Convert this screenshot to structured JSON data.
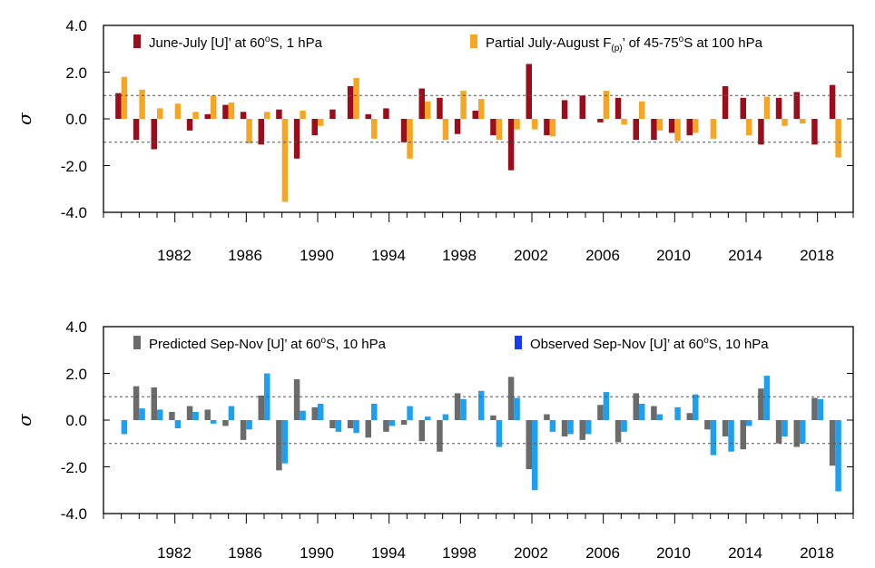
{
  "colors": {
    "top_series_1": "#9b0d1b",
    "top_series_2": "#f5a623",
    "bottom_series_1": "#6b6b6b",
    "bottom_series_2": "#1ea0f0",
    "bottom_legend_swatch_2": "#1a3cf0",
    "reference_line": "#555555"
  },
  "chart_data": [
    {
      "type": "bar",
      "ylabel": "σ",
      "ylim": [
        -4.0,
        4.0
      ],
      "yticks": [
        "4.0",
        "2.0",
        "0.0",
        "-2.0",
        "-4.0"
      ],
      "ytick_values": [
        4,
        2,
        0,
        -2,
        -4
      ],
      "xlim": [
        1978,
        2020
      ],
      "xtick_labels": [
        "1982",
        "1986",
        "1990",
        "1994",
        "1998",
        "2002",
        "2006",
        "2010",
        "2014",
        "2018"
      ],
      "reference_lines": [
        1.0,
        -1.0
      ],
      "legend": {
        "left_prefix": "June-July [U]’ at 60",
        "left_sup": "o",
        "left_suffix": "S, 1 hPa",
        "right_prefix": "Partial July-August F",
        "right_sub": "(p)",
        "right_mid": "’ of 45-75",
        "right_sup": "o",
        "right_suffix": "S at 100 hPa"
      },
      "years": [
        1979,
        1980,
        1981,
        1982,
        1983,
        1984,
        1985,
        1986,
        1987,
        1988,
        1989,
        1990,
        1991,
        1992,
        1993,
        1994,
        1995,
        1996,
        1997,
        1998,
        1999,
        2000,
        2001,
        2002,
        2003,
        2004,
        2005,
        2006,
        2007,
        2008,
        2009,
        2010,
        2011,
        2012,
        2013,
        2014,
        2015,
        2016,
        2017,
        2018,
        2019
      ],
      "series": [
        {
          "values": [
            1.1,
            -0.9,
            -1.3,
            0.0,
            -0.5,
            0.2,
            0.6,
            0.3,
            -1.1,
            0.4,
            -1.7,
            -0.7,
            0.4,
            1.4,
            0.2,
            0.45,
            -1.0,
            1.3,
            0.9,
            -0.65,
            0.35,
            -0.7,
            -2.2,
            2.35,
            -0.7,
            0.8,
            1.0,
            -0.15,
            0.9,
            -0.9,
            -0.9,
            -0.6,
            -0.7,
            0.0,
            1.4,
            0.9,
            -1.1,
            0.9,
            1.15,
            -1.1,
            1.45
          ]
        },
        {
          "values": [
            1.8,
            1.25,
            0.45,
            0.65,
            0.3,
            1.0,
            0.7,
            -1.05,
            0.3,
            -3.55,
            0.35,
            -0.3,
            0.0,
            1.75,
            -0.85,
            0.0,
            -1.7,
            0.75,
            -0.9,
            1.2,
            0.85,
            -0.9,
            -0.45,
            -0.45,
            -0.75,
            0.0,
            0.0,
            1.2,
            -0.25,
            0.75,
            -0.5,
            -0.95,
            -0.6,
            -0.85,
            0.0,
            -0.7,
            0.95,
            -0.3,
            -0.2,
            0.0,
            -1.65
          ]
        }
      ]
    },
    {
      "type": "bar",
      "ylabel": "σ",
      "ylim": [
        -4.0,
        4.0
      ],
      "yticks": [
        "4.0",
        "2.0",
        "0.0",
        "-2.0",
        "-4.0"
      ],
      "ytick_values": [
        4,
        2,
        0,
        -2,
        -4
      ],
      "xlim": [
        1978,
        2020
      ],
      "xtick_labels": [
        "1982",
        "1986",
        "1990",
        "1994",
        "1998",
        "2002",
        "2006",
        "2010",
        "2014",
        "2018"
      ],
      "reference_lines": [
        1.0,
        -1.0
      ],
      "legend": {
        "left_prefix": "Predicted Sep-Nov [U]’ at 60",
        "left_sup": "o",
        "left_suffix": "S, 10 hPa",
        "right_prefix": "Observed Sep-Nov [U]’ at 60",
        "right_sup": "o",
        "right_suffix": "S, 10 hPa"
      },
      "years": [
        1979,
        1980,
        1981,
        1982,
        1983,
        1984,
        1985,
        1986,
        1987,
        1988,
        1989,
        1990,
        1991,
        1992,
        1993,
        1994,
        1995,
        1996,
        1997,
        1998,
        1999,
        2000,
        2001,
        2002,
        2003,
        2004,
        2005,
        2006,
        2007,
        2008,
        2009,
        2010,
        2011,
        2012,
        2013,
        2014,
        2015,
        2016,
        2017,
        2018,
        2019
      ],
      "series": [
        {
          "values": [
            0.0,
            1.45,
            1.4,
            0.35,
            0.6,
            0.45,
            -0.25,
            -0.85,
            1.05,
            -2.15,
            1.75,
            0.55,
            -0.35,
            -0.35,
            -0.75,
            -0.5,
            -0.2,
            -0.9,
            -1.35,
            1.15,
            0.0,
            0.2,
            1.85,
            -2.1,
            0.25,
            -0.7,
            -0.85,
            0.65,
            -0.95,
            1.15,
            0.6,
            0.0,
            0.3,
            -0.4,
            -0.7,
            -1.25,
            1.35,
            -1.0,
            -1.15,
            0.95,
            -1.95
          ]
        },
        {
          "values": [
            -0.6,
            0.5,
            0.45,
            -0.35,
            0.35,
            -0.15,
            0.6,
            -0.4,
            2.0,
            -1.85,
            0.4,
            0.7,
            -0.5,
            -0.55,
            0.7,
            -0.25,
            0.6,
            0.15,
            0.25,
            0.9,
            1.25,
            -1.15,
            0.95,
            -3.0,
            -0.5,
            -0.6,
            -0.6,
            1.2,
            -0.5,
            0.7,
            0.25,
            0.55,
            1.1,
            -1.5,
            -1.35,
            -0.25,
            1.9,
            -0.7,
            -1.0,
            0.9,
            -3.05
          ]
        }
      ]
    }
  ]
}
